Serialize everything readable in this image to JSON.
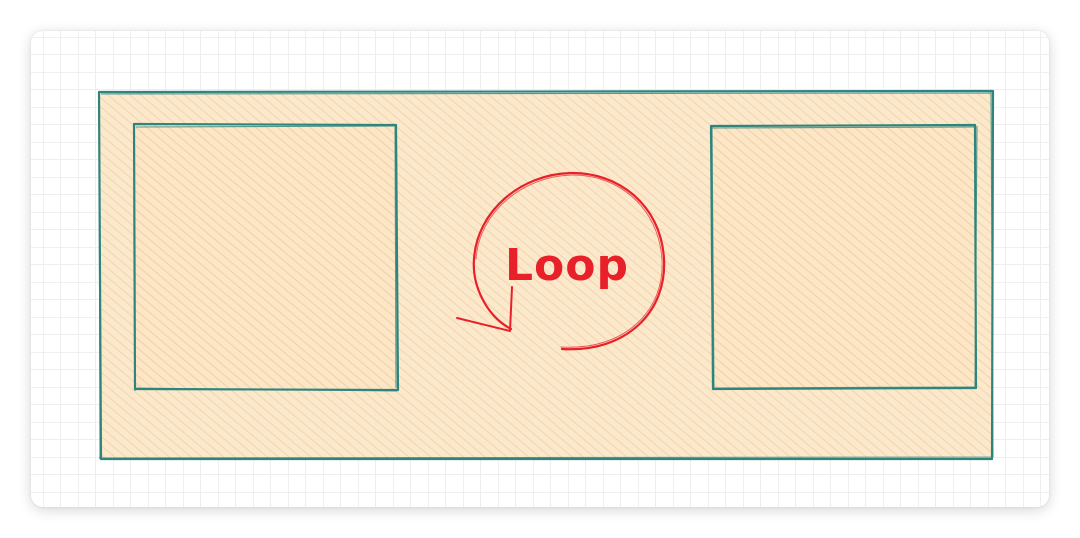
{
  "colors": {
    "grid_line": "#d9d9d9",
    "fill": "#f9dfb8",
    "hatch": "#f6cf98",
    "stroke": "#2e857d",
    "loop": "#e8202a"
  },
  "diagram": {
    "outer_box": {
      "shape": "rectangle",
      "style": "hachure"
    },
    "left_box": {
      "shape": "rectangle",
      "style": "hachure"
    },
    "right_box": {
      "shape": "rectangle",
      "style": "hachure"
    },
    "loop": {
      "label": "Loop",
      "arrow": "circular-counterclockwise"
    }
  }
}
